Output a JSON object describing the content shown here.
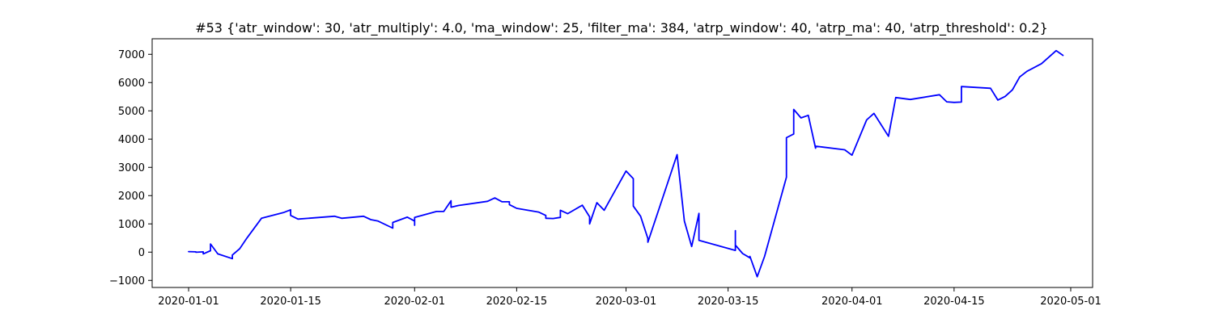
{
  "chart_data": {
    "type": "line",
    "title": "#53 {'atr_window': 30, 'atr_multiply': 4.0, 'ma_window': 25, 'filter_ma': 384, 'atrp_window': 40, 'atrp_ma': 40, 'atrp_threshold': 0.2}",
    "xlabel": "",
    "ylabel": "",
    "xlim": [
      "2019-12-27",
      "2020-05-04"
    ],
    "ylim": [
      -1250,
      7550
    ],
    "x_ticks": [
      "2020-01-01",
      "2020-01-15",
      "2020-02-01",
      "2020-02-15",
      "2020-03-01",
      "2020-03-15",
      "2020-04-01",
      "2020-04-15",
      "2020-05-01"
    ],
    "y_ticks": [
      -1000,
      0,
      1000,
      2000,
      3000,
      4000,
      5000,
      6000,
      7000
    ],
    "grid": false,
    "series": [
      {
        "color": "#0000ff",
        "points": [
          [
            "2020-01-01",
            0
          ],
          [
            "2020-01-01",
            20
          ],
          [
            "2020-01-02",
            10
          ],
          [
            "2020-01-02",
            0
          ],
          [
            "2020-01-02",
            -5
          ],
          [
            "2020-01-03",
            10
          ],
          [
            "2020-01-03",
            -60
          ],
          [
            "2020-01-04",
            50
          ],
          [
            "2020-01-04",
            290
          ],
          [
            "2020-01-05",
            -60
          ],
          [
            "2020-01-07",
            -230
          ],
          [
            "2020-01-07",
            -100
          ],
          [
            "2020-01-08",
            120
          ],
          [
            "2020-01-09",
            500
          ],
          [
            "2020-01-11",
            1200
          ],
          [
            "2020-01-14",
            1400
          ],
          [
            "2020-01-15",
            1500
          ],
          [
            "2020-01-15",
            1300
          ],
          [
            "2020-01-16",
            1170
          ],
          [
            "2020-01-21",
            1270
          ],
          [
            "2020-01-22",
            1200
          ],
          [
            "2020-01-25",
            1270
          ],
          [
            "2020-01-26",
            1150
          ],
          [
            "2020-01-27",
            1100
          ],
          [
            "2020-01-29",
            850
          ],
          [
            "2020-01-29",
            1050
          ],
          [
            "2020-01-31",
            1240
          ],
          [
            "2020-02-01",
            1100
          ],
          [
            "2020-02-01",
            950
          ],
          [
            "2020-02-01",
            1230
          ],
          [
            "2020-02-04",
            1440
          ],
          [
            "2020-02-05",
            1440
          ],
          [
            "2020-02-06",
            1820
          ],
          [
            "2020-02-06",
            1590
          ],
          [
            "2020-02-07",
            1650
          ],
          [
            "2020-02-11",
            1800
          ],
          [
            "2020-02-12",
            1920
          ],
          [
            "2020-02-13",
            1780
          ],
          [
            "2020-02-14",
            1780
          ],
          [
            "2020-02-14",
            1680
          ],
          [
            "2020-02-15",
            1550
          ],
          [
            "2020-02-18",
            1420
          ],
          [
            "2020-02-19",
            1300
          ],
          [
            "2020-02-19",
            1200
          ],
          [
            "2020-02-20",
            1190
          ],
          [
            "2020-02-21",
            1230
          ],
          [
            "2020-02-21",
            1480
          ],
          [
            "2020-02-22",
            1360
          ],
          [
            "2020-02-24",
            1660
          ],
          [
            "2020-02-25",
            1250
          ],
          [
            "2020-02-25",
            1000
          ],
          [
            "2020-02-26",
            1750
          ],
          [
            "2020-02-27",
            1480
          ],
          [
            "2020-03-01",
            2870
          ],
          [
            "2020-03-02",
            2600
          ],
          [
            "2020-03-02",
            1630
          ],
          [
            "2020-03-03",
            1270
          ],
          [
            "2020-03-04",
            480
          ],
          [
            "2020-03-04",
            350
          ],
          [
            "2020-03-08",
            3450
          ],
          [
            "2020-03-09",
            1100
          ],
          [
            "2020-03-10",
            200
          ],
          [
            "2020-03-11",
            1370
          ],
          [
            "2020-03-11",
            420
          ],
          [
            "2020-03-16",
            60
          ],
          [
            "2020-03-16",
            760
          ],
          [
            "2020-03-16",
            250
          ],
          [
            "2020-03-17",
            -50
          ],
          [
            "2020-03-18",
            -200
          ],
          [
            "2020-03-18",
            -150
          ],
          [
            "2020-03-19",
            -870
          ],
          [
            "2020-03-20",
            -150
          ],
          [
            "2020-03-23",
            2650
          ],
          [
            "2020-03-23",
            4050
          ],
          [
            "2020-03-24",
            4180
          ],
          [
            "2020-03-24",
            5050
          ],
          [
            "2020-03-25",
            4750
          ],
          [
            "2020-03-26",
            4840
          ],
          [
            "2020-03-27",
            3680
          ],
          [
            "2020-03-27",
            3750
          ],
          [
            "2020-03-31",
            3620
          ],
          [
            "2020-04-01",
            3430
          ],
          [
            "2020-04-03",
            4680
          ],
          [
            "2020-04-04",
            4910
          ],
          [
            "2020-04-06",
            4100
          ],
          [
            "2020-04-07",
            5470
          ],
          [
            "2020-04-09",
            5400
          ],
          [
            "2020-04-13",
            5570
          ],
          [
            "2020-04-14",
            5320
          ],
          [
            "2020-04-15",
            5300
          ],
          [
            "2020-04-16",
            5310
          ],
          [
            "2020-04-16",
            5860
          ],
          [
            "2020-04-20",
            5800
          ],
          [
            "2020-04-21",
            5380
          ],
          [
            "2020-04-22",
            5510
          ],
          [
            "2020-04-23",
            5740
          ],
          [
            "2020-04-24",
            6200
          ],
          [
            "2020-04-25",
            6400
          ],
          [
            "2020-04-27",
            6670
          ],
          [
            "2020-04-29",
            7130
          ],
          [
            "2020-04-30",
            6950
          ]
        ]
      }
    ]
  }
}
